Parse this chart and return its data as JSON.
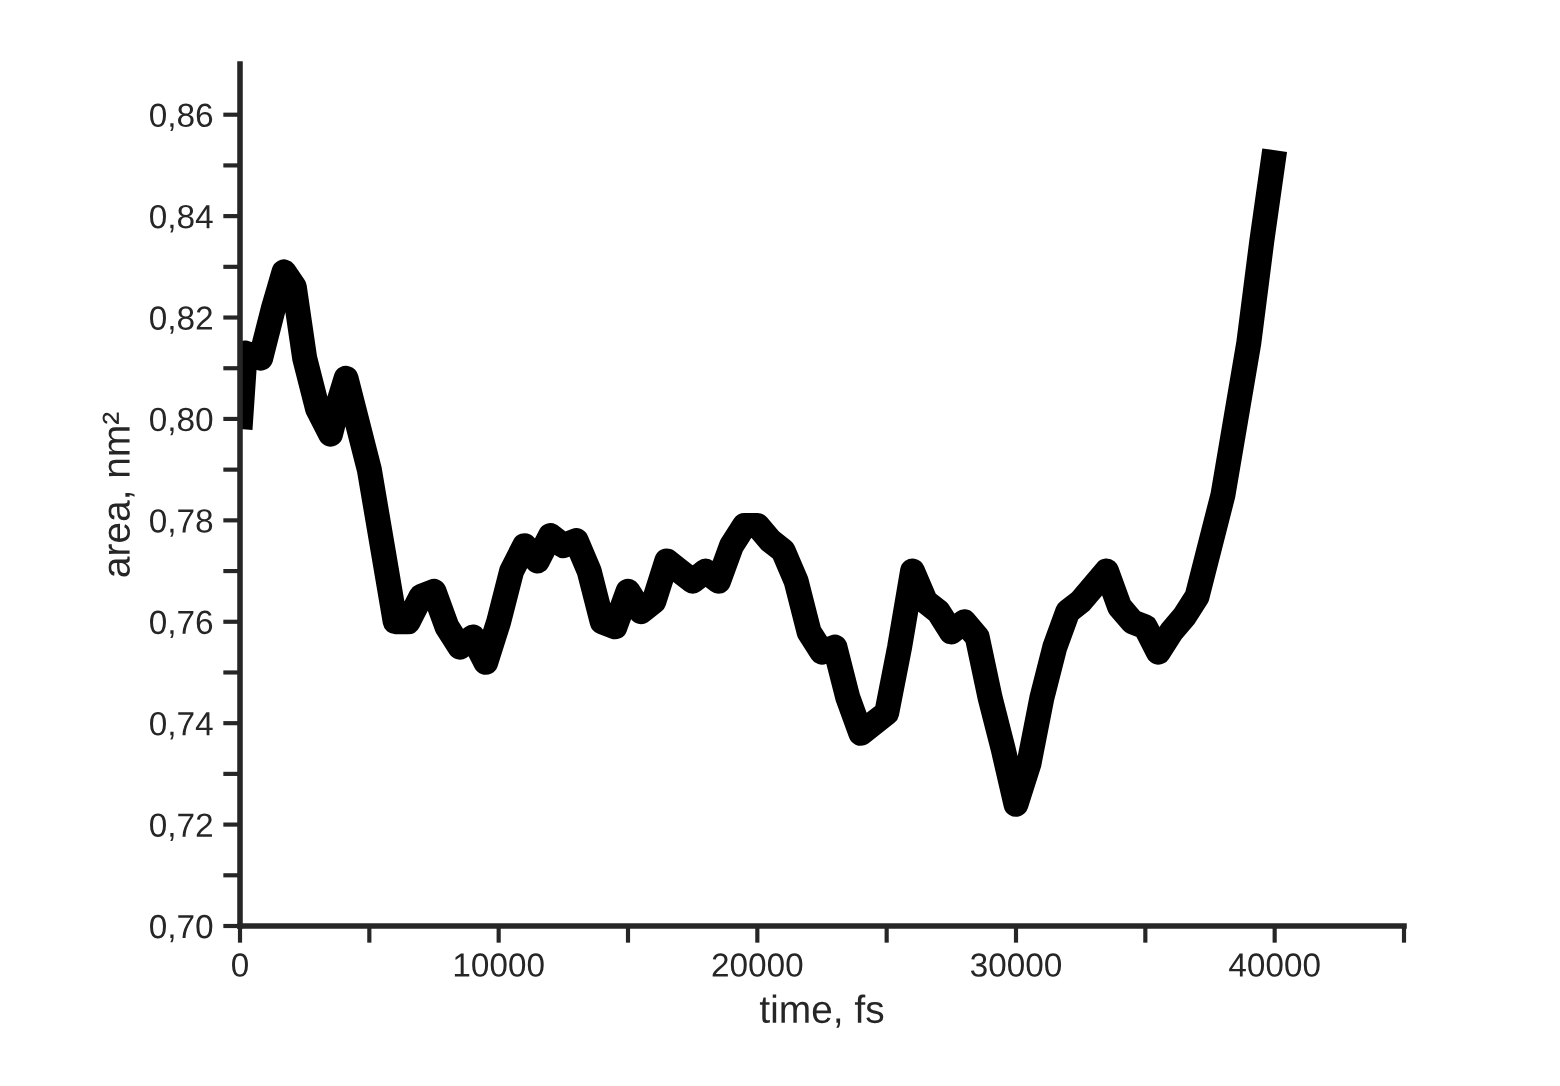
{
  "chart_data": {
    "type": "line",
    "xlabel": "time, fs",
    "ylabel": "area, nm²",
    "x": [
      0,
      200,
      800,
      1300,
      1700,
      2100,
      2500,
      3000,
      3500,
      3800,
      4100,
      4500,
      5000,
      5500,
      6000,
      6500,
      7000,
      7500,
      8000,
      8500,
      9000,
      9500,
      10000,
      10500,
      11000,
      11500,
      12000,
      12500,
      13000,
      13500,
      14000,
      14500,
      15000,
      15500,
      16000,
      16500,
      17000,
      17500,
      18000,
      18500,
      19000,
      19500,
      20000,
      20500,
      21000,
      21500,
      22000,
      22500,
      23000,
      23500,
      24000,
      24500,
      25000,
      25500,
      26000,
      26500,
      27000,
      27500,
      28000,
      28500,
      29000,
      29500,
      30000,
      30500,
      31000,
      31500,
      32000,
      32500,
      33000,
      33500,
      34000,
      34500,
      35000,
      35500,
      36000,
      36500,
      37000,
      37500,
      38000,
      38500,
      39000,
      39500,
      40000
    ],
    "series": [
      {
        "color": "#000000",
        "values": [
          0.798,
          0.813,
          0.812,
          0.822,
          0.829,
          0.826,
          0.812,
          0.802,
          0.797,
          0.803,
          0.808,
          0.8,
          0.79,
          0.775,
          0.76,
          0.76,
          0.765,
          0.766,
          0.759,
          0.755,
          0.757,
          0.752,
          0.76,
          0.77,
          0.775,
          0.772,
          0.777,
          0.775,
          0.776,
          0.77,
          0.76,
          0.759,
          0.766,
          0.762,
          0.764,
          0.772,
          0.77,
          0.768,
          0.77,
          0.768,
          0.775,
          0.779,
          0.779,
          0.776,
          0.774,
          0.768,
          0.758,
          0.754,
          0.755,
          0.745,
          0.738,
          0.74,
          0.742,
          0.755,
          0.77,
          0.764,
          0.762,
          0.758,
          0.76,
          0.757,
          0.745,
          0.735,
          0.724,
          0.732,
          0.745,
          0.755,
          0.762,
          0.764,
          0.767,
          0.77,
          0.763,
          0.76,
          0.759,
          0.754,
          0.758,
          0.761,
          0.765,
          0.775,
          0.785,
          0.8,
          0.815,
          0.835,
          0.853
        ]
      }
    ],
    "xlim": [
      0,
      45000
    ],
    "ylim": [
      0.7,
      0.87
    ],
    "xticks": [
      0,
      {
        "value": 5000,
        "label": null
      },
      10000,
      {
        "value": 15000,
        "label": null
      },
      20000,
      {
        "value": 25000,
        "label": null
      },
      30000,
      {
        "value": 35000,
        "label": null
      },
      40000,
      {
        "value": 45000,
        "label": null
      }
    ],
    "yticks": [
      {
        "value": 0.7,
        "label": "0,70"
      },
      {
        "value": 0.71,
        "label": null
      },
      {
        "value": 0.72,
        "label": "0,72"
      },
      {
        "value": 0.73,
        "label": null
      },
      {
        "value": 0.74,
        "label": "0,74"
      },
      {
        "value": 0.75,
        "label": null
      },
      {
        "value": 0.76,
        "label": "0,76"
      },
      {
        "value": 0.77,
        "label": null
      },
      {
        "value": 0.78,
        "label": "0,78"
      },
      {
        "value": 0.79,
        "label": null
      },
      {
        "value": 0.8,
        "label": "0,80"
      },
      {
        "value": 0.81,
        "label": null
      },
      {
        "value": 0.82,
        "label": "0,82"
      },
      {
        "value": 0.83,
        "label": null
      },
      {
        "value": 0.84,
        "label": "0,84"
      },
      {
        "value": 0.85,
        "label": null
      },
      {
        "value": 0.86,
        "label": "0,86"
      }
    ],
    "grid": false,
    "legend": false,
    "line_style": "solid"
  }
}
